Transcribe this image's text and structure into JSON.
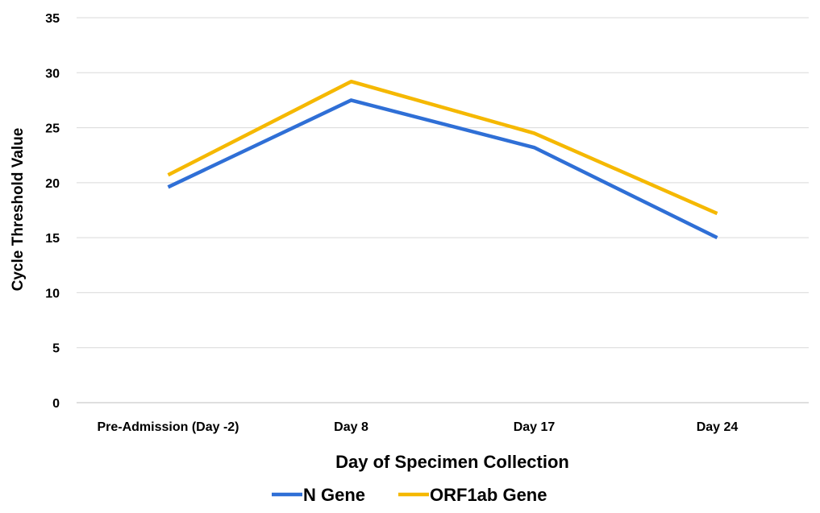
{
  "chart_data": {
    "type": "line",
    "categories": [
      "Pre-Admission (Day -2)",
      "Day 8",
      "Day 17",
      "Day 24"
    ],
    "series": [
      {
        "name": "N Gene",
        "color": "#2f6fd6",
        "values": [
          19.6,
          27.5,
          23.2,
          15.0
        ]
      },
      {
        "name": "ORF1ab Gene",
        "color": "#f5b800",
        "values": [
          20.7,
          29.2,
          24.5,
          17.2
        ]
      }
    ],
    "xlabel": "Day of Specimen Collection",
    "ylabel": "Cycle Threshold Value",
    "ylim": [
      0,
      35
    ],
    "yticks": [
      0,
      5,
      10,
      15,
      20,
      25,
      30,
      35
    ],
    "grid": true,
    "legend": "bottom-center"
  }
}
